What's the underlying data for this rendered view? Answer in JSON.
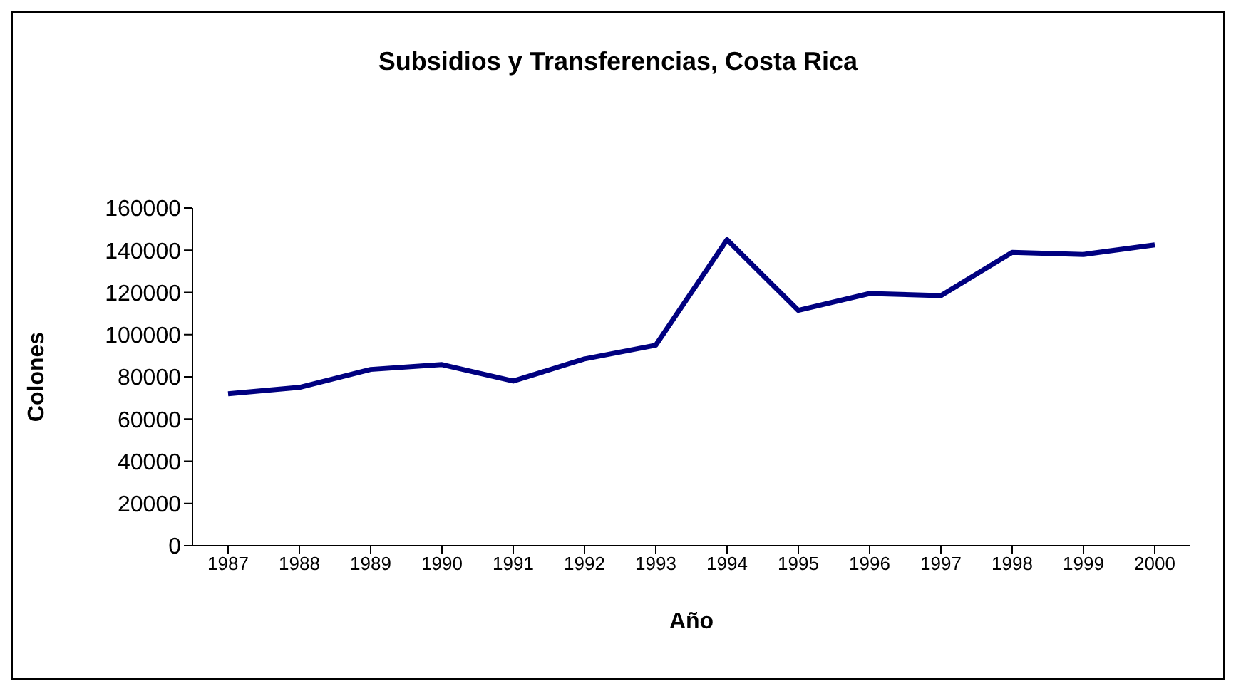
{
  "chart_data": {
    "type": "line",
    "title": "Subsidios y Transferencias, Costa Rica",
    "xlabel": "Año",
    "ylabel": "Colones",
    "categories": [
      "1987",
      "1988",
      "1989",
      "1990",
      "1991",
      "1992",
      "1993",
      "1994",
      "1995",
      "1996",
      "1997",
      "1998",
      "1999",
      "2000"
    ],
    "series": [
      {
        "color": "#000080",
        "values": [
          72000,
          75000,
          83500,
          85800,
          78000,
          88500,
          95000,
          145000,
          111500,
          119500,
          118500,
          139000,
          138000,
          142500
        ]
      }
    ],
    "ylim": [
      0,
      160000
    ],
    "yticks": [
      0,
      20000,
      40000,
      60000,
      80000,
      100000,
      120000,
      140000,
      160000
    ],
    "grid": false,
    "legend": false,
    "marker": "none",
    "line_style": "solid"
  }
}
